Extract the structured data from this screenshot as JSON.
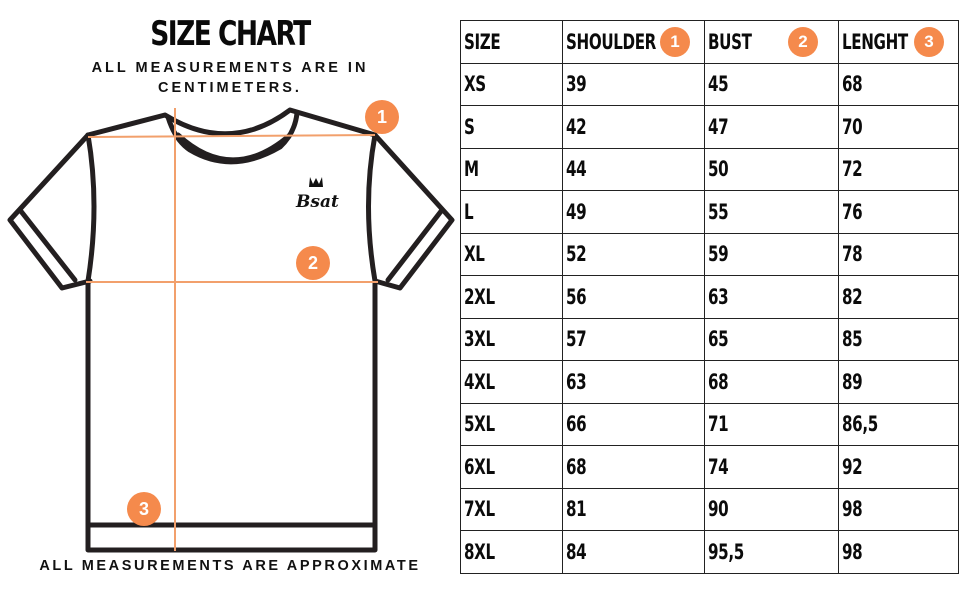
{
  "header": {
    "title": "SIZE CHART",
    "subtitle": "ALL MEASUREMENTS ARE IN CENTIMETERS."
  },
  "diagram": {
    "logo_text": "Bsat",
    "badges": [
      "1",
      "2",
      "3"
    ],
    "accent_color": "#f58a4c",
    "outline_color": "#231f20"
  },
  "footer": {
    "note": "ALL MEASUREMENTS ARE APPROXIMATE"
  },
  "table": {
    "headers": [
      {
        "label": "SIZE",
        "badge": ""
      },
      {
        "label": "SHOULDER",
        "badge": "1"
      },
      {
        "label": "BUST",
        "badge": "2"
      },
      {
        "label": "LENGHT",
        "badge": "3"
      }
    ],
    "rows": [
      [
        "XS",
        "39",
        "45",
        "68"
      ],
      [
        "S",
        "42",
        "47",
        "70"
      ],
      [
        "M",
        "44",
        "50",
        "72"
      ],
      [
        "L",
        "49",
        "55",
        "76"
      ],
      [
        "XL",
        "52",
        "59",
        "78"
      ],
      [
        "2XL",
        "56",
        "63",
        "82"
      ],
      [
        "3XL",
        "57",
        "65",
        "85"
      ],
      [
        "4XL",
        "63",
        "68",
        "89"
      ],
      [
        "5XL",
        "66",
        "71",
        "86,5"
      ],
      [
        "6XL",
        "68",
        "74",
        "92"
      ],
      [
        "7XL",
        "81",
        "90",
        "98"
      ],
      [
        "8XL",
        "84",
        "95,5",
        "98"
      ]
    ]
  }
}
